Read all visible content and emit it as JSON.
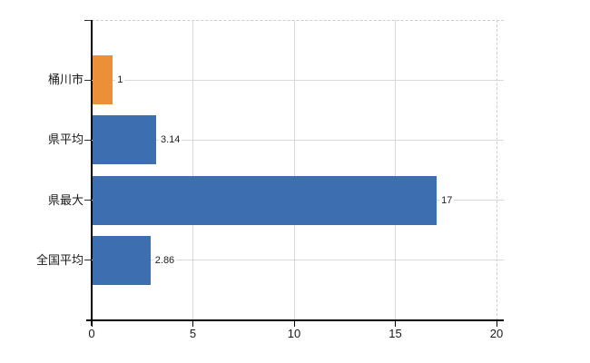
{
  "chart_data": {
    "type": "bar",
    "orientation": "horizontal",
    "title": "",
    "xlabel": "",
    "ylabel": "",
    "categories": [
      "桶川市",
      "県平均",
      "県最大",
      "全国平均"
    ],
    "values": [
      1,
      3.14,
      17,
      2.86
    ],
    "value_labels": [
      "1",
      "3.14",
      "17",
      "2.86"
    ],
    "bar_colors": [
      "#EB9038",
      "#3C6EB0",
      "#3C6EB0",
      "#3C6EB0"
    ],
    "xlim": [
      0,
      20
    ],
    "x_ticks": [
      "0",
      "5",
      "10",
      "15",
      "20"
    ],
    "grid": true,
    "legend": "none"
  },
  "colors": {
    "highlight_bar": "#EB9038",
    "default_bar": "#3C6EB0",
    "gridline": "#D9D9D9",
    "dashed_border": "#CDCDCD",
    "axis": "#000000",
    "text": "#1A1A1A",
    "background": "#FFFFFF"
  }
}
